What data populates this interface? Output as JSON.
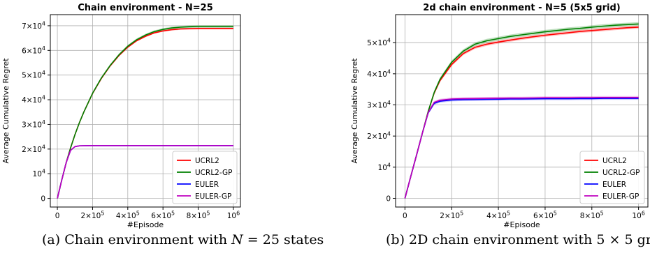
{
  "chart_data": [
    {
      "type": "line",
      "title": "Chain environment - N=25",
      "xlabel": "#Episode",
      "ylabel": "Average Cumulative Regret",
      "xlim": [
        -40000,
        1040000
      ],
      "ylim": [
        -3500,
        74500
      ],
      "grid": true,
      "legend_position": "lower-right",
      "x_ticks": [
        0,
        200000,
        400000,
        600000,
        800000,
        1000000
      ],
      "x_tick_labels": [
        {
          "base": "0",
          "exp": ""
        },
        {
          "base": "2×10",
          "exp": "5"
        },
        {
          "base": "4×10",
          "exp": "5"
        },
        {
          "base": "6×10",
          "exp": "5"
        },
        {
          "base": "8×10",
          "exp": "5"
        },
        {
          "base": "10",
          "exp": "6"
        }
      ],
      "y_ticks": [
        0,
        10000,
        20000,
        30000,
        40000,
        50000,
        60000,
        70000
      ],
      "y_tick_labels": [
        {
          "base": "0",
          "exp": ""
        },
        {
          "base": "10",
          "exp": "4"
        },
        {
          "base": "2×10",
          "exp": "4"
        },
        {
          "base": "3×10",
          "exp": "4"
        },
        {
          "base": "4×10",
          "exp": "4"
        },
        {
          "base": "5×10",
          "exp": "4"
        },
        {
          "base": "6×10",
          "exp": "4"
        },
        {
          "base": "7×10",
          "exp": "4"
        }
      ],
      "x": [
        0,
        25000,
        50000,
        75000,
        100000,
        125000,
        150000,
        200000,
        250000,
        300000,
        350000,
        400000,
        450000,
        500000,
        550000,
        600000,
        650000,
        700000,
        750000,
        800000,
        850000,
        900000,
        950000,
        1000000
      ],
      "series": [
        {
          "name": "UCRL2",
          "color": "#ff0000",
          "band": 350,
          "values": [
            0,
            7500,
            14500,
            20500,
            25900,
            30700,
            35000,
            42500,
            48600,
            53700,
            57900,
            61300,
            63900,
            65700,
            67100,
            67900,
            68400,
            68700,
            68800,
            68900,
            68900,
            68900,
            68900,
            68900
          ]
        },
        {
          "name": "UCRL2-GP",
          "color": "#008000",
          "band": 500,
          "values": [
            0,
            7500,
            14500,
            20500,
            25900,
            30700,
            35000,
            42600,
            48800,
            53900,
            58200,
            61700,
            64300,
            66200,
            67600,
            68500,
            69100,
            69400,
            69600,
            69700,
            69700,
            69700,
            69700,
            69700
          ]
        },
        {
          "name": "EULER",
          "color": "#0000ff",
          "band": 250,
          "values": [
            0,
            7500,
            14500,
            19500,
            21000,
            21300,
            21350,
            21400,
            21400,
            21400,
            21400,
            21400,
            21400,
            21400,
            21400,
            21400,
            21400,
            21400,
            21400,
            21400,
            21400,
            21400,
            21400,
            21400
          ]
        },
        {
          "name": "EULER-GP",
          "color": "#bf00bf",
          "band": 250,
          "values": [
            0,
            7500,
            14500,
            19500,
            21000,
            21300,
            21350,
            21400,
            21400,
            21400,
            21400,
            21400,
            21400,
            21400,
            21400,
            21400,
            21400,
            21400,
            21400,
            21400,
            21400,
            21400,
            21400,
            21400
          ]
        }
      ]
    },
    {
      "type": "line",
      "title": "2d chain environment - N=5 (5x5 grid)",
      "xlabel": "#Episode",
      "ylabel": "Average Cumulative Regret",
      "xlim": [
        -40000,
        1040000
      ],
      "ylim": [
        -2800,
        59000
      ],
      "grid": true,
      "legend_position": "lower-right",
      "x_ticks": [
        0,
        200000,
        400000,
        600000,
        800000,
        1000000
      ],
      "x_tick_labels": [
        {
          "base": "0",
          "exp": ""
        },
        {
          "base": "2×10",
          "exp": "5"
        },
        {
          "base": "4×10",
          "exp": "5"
        },
        {
          "base": "6×10",
          "exp": "5"
        },
        {
          "base": "8×10",
          "exp": "5"
        },
        {
          "base": "10",
          "exp": "6"
        }
      ],
      "y_ticks": [
        0,
        10000,
        20000,
        30000,
        40000,
        50000
      ],
      "y_tick_labels": [
        {
          "base": "0",
          "exp": ""
        },
        {
          "base": "10",
          "exp": "4"
        },
        {
          "base": "2×10",
          "exp": "4"
        },
        {
          "base": "3×10",
          "exp": "4"
        },
        {
          "base": "4×10",
          "exp": "4"
        },
        {
          "base": "5×10",
          "exp": "4"
        }
      ],
      "x": [
        0,
        25000,
        50000,
        75000,
        100000,
        125000,
        150000,
        200000,
        250000,
        300000,
        350000,
        400000,
        450000,
        500000,
        550000,
        600000,
        650000,
        700000,
        750000,
        800000,
        850000,
        900000,
        950000,
        1000000
      ],
      "series": [
        {
          "name": "UCRL2",
          "color": "#ff0000",
          "band": 500,
          "values": [
            0,
            7000,
            14000,
            21000,
            28000,
            33800,
            37800,
            43000,
            46500,
            48500,
            49500,
            50200,
            50800,
            51400,
            51900,
            52400,
            52800,
            53200,
            53600,
            53900,
            54200,
            54500,
            54800,
            55000
          ]
        },
        {
          "name": "UCRL2-GP",
          "color": "#008000",
          "band": 600,
          "values": [
            0,
            7000,
            14000,
            21000,
            28000,
            34000,
            38200,
            43700,
            47300,
            49500,
            50600,
            51300,
            52000,
            52500,
            53000,
            53500,
            53900,
            54300,
            54600,
            55000,
            55300,
            55600,
            55800,
            56000
          ]
        },
        {
          "name": "EULER",
          "color": "#0000ff",
          "band": 450,
          "values": [
            0,
            7000,
            14000,
            21000,
            27500,
            30500,
            31200,
            31600,
            31700,
            31750,
            31800,
            31850,
            31900,
            31900,
            31950,
            32000,
            32000,
            32000,
            32050,
            32050,
            32100,
            32100,
            32100,
            32100
          ]
        },
        {
          "name": "EULER-GP",
          "color": "#bf00bf",
          "band": 450,
          "values": [
            0,
            7000,
            14000,
            21000,
            27600,
            30800,
            31500,
            31900,
            32000,
            32050,
            32100,
            32150,
            32200,
            32200,
            32250,
            32300,
            32300,
            32300,
            32350,
            32350,
            32400,
            32400,
            32400,
            32400
          ]
        }
      ]
    }
  ],
  "captions": {
    "left": {
      "prefix": "(a) Chain environment with ",
      "var": "N",
      "suffix": " = 25 states"
    },
    "right": {
      "prefix": "(b) 2D chain environment with ",
      "expr": "5 × 5",
      "suffix": " gri"
    }
  }
}
